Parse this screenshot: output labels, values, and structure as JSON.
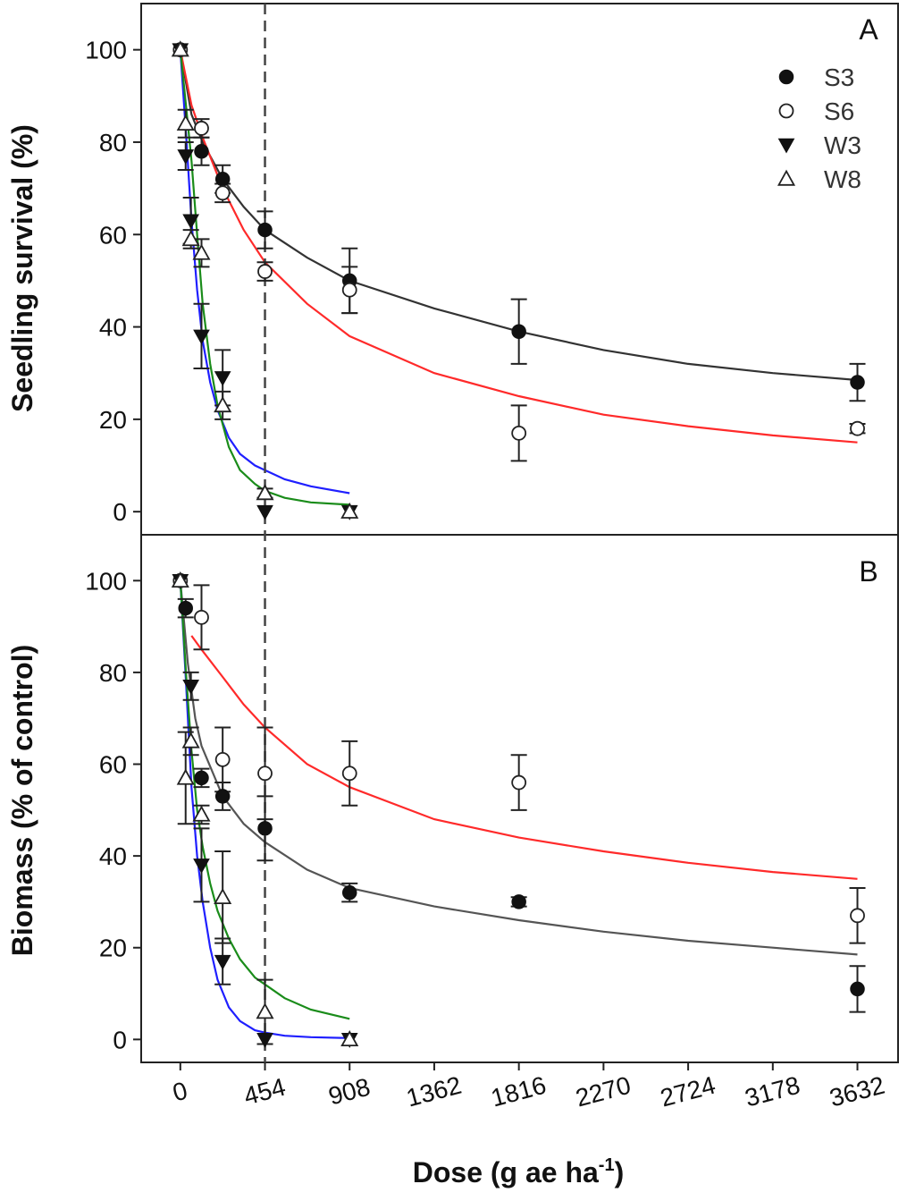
{
  "chart_data": {
    "type": "scatter",
    "xlabel": "Dose (g ae ha",
    "xlabel_sup": "-1",
    "xlabel_end": ")",
    "x_ticks": [
      0,
      454,
      908,
      1362,
      1816,
      2270,
      2724,
      3178,
      3632
    ],
    "xlim": [
      -210,
      3850
    ],
    "reference_line_x": 454,
    "legend": {
      "placement": "top-right",
      "entries": [
        {
          "name": "S3",
          "marker": "filled-circle"
        },
        {
          "name": "S6",
          "marker": "open-circle"
        },
        {
          "name": "W3",
          "marker": "filled-triangle-down"
        },
        {
          "name": "W8",
          "marker": "open-triangle-up"
        }
      ]
    },
    "panels": [
      {
        "id": "A",
        "letter": "A",
        "ylabel": "Seedling survival (%)",
        "ylim": [
          -5,
          110
        ],
        "y_ticks": [
          0,
          20,
          40,
          60,
          80,
          100
        ],
        "series": [
          {
            "name": "S3",
            "marker": "filled-circle",
            "x": [
              0,
              113.5,
              227,
              454,
              908,
              1816,
              3632
            ],
            "y": [
              100,
              78,
              72,
              61,
              50,
              39,
              28
            ],
            "err": [
              0,
              3,
              3,
              4,
              7,
              7,
              4
            ]
          },
          {
            "name": "S6",
            "marker": "open-circle",
            "x": [
              0,
              113.5,
              227,
              454,
              908,
              1816,
              3632
            ],
            "y": [
              100,
              83,
              69,
              52,
              48,
              17,
              18
            ],
            "err": [
              0,
              2,
              2,
              2,
              5,
              6,
              1
            ]
          },
          {
            "name": "W3",
            "marker": "filled-triangle-down",
            "x": [
              0,
              28.4,
              56.8,
              113.5,
              227,
              454,
              908
            ],
            "y": [
              100,
              77,
              63,
              38,
              29,
              0,
              0
            ],
            "err": [
              0,
              3,
              5,
              7,
              6,
              0,
              0
            ]
          },
          {
            "name": "W8",
            "marker": "open-triangle-up",
            "x": [
              0,
              28.4,
              56.8,
              113.5,
              227,
              454,
              908
            ],
            "y": [
              100,
              84,
              59,
              56,
              23,
              4,
              0
            ],
            "err": [
              0,
              3,
              2,
              3,
              3,
              1,
              0
            ]
          }
        ],
        "fits": [
          {
            "name": "S3",
            "color": "#333333",
            "x": [
              0,
              60,
              120,
              227,
              340,
              454,
              680,
              908,
              1362,
              1816,
              2270,
              2724,
              3178,
              3632
            ],
            "y": [
              100,
              86,
              80,
              72,
              66,
              61,
              55,
              50,
              44,
              39,
              35,
              32,
              30,
              28.5
            ]
          },
          {
            "name": "S6",
            "color": "#ff2a2a",
            "x": [
              0,
              60,
              120,
              227,
              340,
              454,
              680,
              908,
              1362,
              1816,
              2270,
              2724,
              3178,
              3632
            ],
            "y": [
              100,
              88,
              81,
              70,
              61,
              54,
              45,
              38,
              30,
              25,
              21,
              18.5,
              16.5,
              15
            ]
          },
          {
            "name": "W3",
            "color": "#1f1fff",
            "x": [
              0,
              30,
              60,
              90,
              120,
              160,
              200,
              260,
              320,
              400,
              454,
              560,
              700,
              908
            ],
            "y": [
              100,
              82,
              63,
              48,
              37,
              28,
              22,
              16,
              12.5,
              10,
              9,
              7,
              5.5,
              4
            ]
          },
          {
            "name": "W8",
            "color": "#1a8c1a",
            "x": [
              0,
              30,
              60,
              90,
              120,
              160,
              200,
              260,
              320,
              400,
              454,
              560,
              700,
              908
            ],
            "y": [
              100,
              88,
              76,
              60,
              45,
              32,
              23,
              14,
              9,
              6,
              4.5,
              3,
              2,
              1.5
            ]
          }
        ]
      },
      {
        "id": "B",
        "letter": "B",
        "ylabel": "Biomass (% of control)",
        "ylim": [
          -5,
          110
        ],
        "y_ticks": [
          0,
          20,
          40,
          60,
          80,
          100
        ],
        "series": [
          {
            "name": "S3",
            "marker": "filled-circle",
            "x": [
              0,
              28.4,
              113.5,
              227,
              454,
              908,
              1816,
              3632
            ],
            "y": [
              100,
              94,
              57,
              53,
              46,
              32,
              30,
              11
            ],
            "err": [
              0,
              2,
              2,
              3,
              7,
              2,
              1,
              5
            ]
          },
          {
            "name": "S6",
            "marker": "open-circle",
            "x": [
              0,
              113.5,
              227,
              454,
              908,
              1816,
              3632
            ],
            "y": [
              100,
              92,
              61,
              58,
              58,
              56,
              27
            ],
            "err": [
              0,
              7,
              7,
              10,
              7,
              6,
              6
            ]
          },
          {
            "name": "W3",
            "marker": "filled-triangle-down",
            "x": [
              0,
              56.8,
              113.5,
              227,
              454,
              908
            ],
            "y": [
              100,
              77,
              38,
              17,
              0,
              0
            ],
            "err": [
              0,
              3,
              8,
              5,
              0,
              0
            ]
          },
          {
            "name": "W8",
            "marker": "open-triangle-up",
            "x": [
              0,
              28.4,
              56.8,
              113.5,
              227,
              454,
              908
            ],
            "y": [
              100,
              57,
              65,
              49,
              31,
              6,
              0
            ],
            "err": [
              0,
              10,
              3,
              2,
              10,
              7,
              0
            ]
          }
        ],
        "fits": [
          {
            "name": "S3",
            "color": "#555555",
            "x": [
              0,
              40,
              80,
              113.5,
              227,
              340,
              454,
              680,
              908,
              1362,
              1816,
              2270,
              2724,
              3178,
              3632
            ],
            "y": [
              100,
              82,
              70,
              64,
              53,
              47,
              43,
              37,
              33,
              29,
              26,
              23.5,
              21.5,
              20,
              18.5
            ]
          },
          {
            "name": "S6",
            "color": "#ff2a2a",
            "x": [
              60,
              113.5,
              227,
              340,
              454,
              680,
              908,
              1362,
              1816,
              2270,
              2724,
              3178,
              3632
            ],
            "y": [
              88,
              85,
              79,
              73,
              68,
              60,
              55,
              48,
              44,
              41,
              38.5,
              36.5,
              35
            ]
          },
          {
            "name": "W3",
            "color": "#1f1fff",
            "x": [
              0,
              30,
              60,
              90,
              120,
              160,
              200,
              260,
              320,
              400,
              454,
              560,
              700,
              908
            ],
            "y": [
              100,
              78,
              55,
              40,
              30,
              20,
              13,
              7,
              4,
              2,
              1.5,
              0.8,
              0.5,
              0.3
            ]
          },
          {
            "name": "W8",
            "color": "#1a8c1a",
            "x": [
              0,
              30,
              60,
              90,
              120,
              160,
              200,
              260,
              320,
              400,
              454,
              560,
              700,
              908
            ],
            "y": [
              100,
              80,
              63,
              50,
              42,
              34,
              28,
              22,
              17.5,
              13.5,
              12,
              9,
              6.5,
              4.5
            ]
          }
        ]
      }
    ]
  }
}
